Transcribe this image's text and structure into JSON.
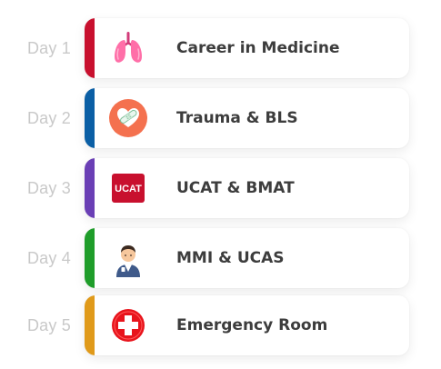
{
  "schedule": {
    "items": [
      {
        "day": "Day 1",
        "title": "Career in Medicine",
        "accent": "#c8102e",
        "icon": "lungs-icon"
      },
      {
        "day": "Day 2",
        "title": "Trauma & BLS",
        "accent": "#0b5fa5",
        "icon": "heart-bandage-icon"
      },
      {
        "day": "Day 3",
        "title": "UCAT & BMAT",
        "accent": "#6a3fb5",
        "icon": "ucat-logo-icon",
        "icon_text": "UCAT"
      },
      {
        "day": "Day 4",
        "title": "MMI & UCAS",
        "accent": "#1f9d2a",
        "icon": "doctor-avatar-icon"
      },
      {
        "day": "Day 5",
        "title": "Emergency Room",
        "accent": "#e09a1a",
        "icon": "medical-cross-icon"
      }
    ]
  }
}
